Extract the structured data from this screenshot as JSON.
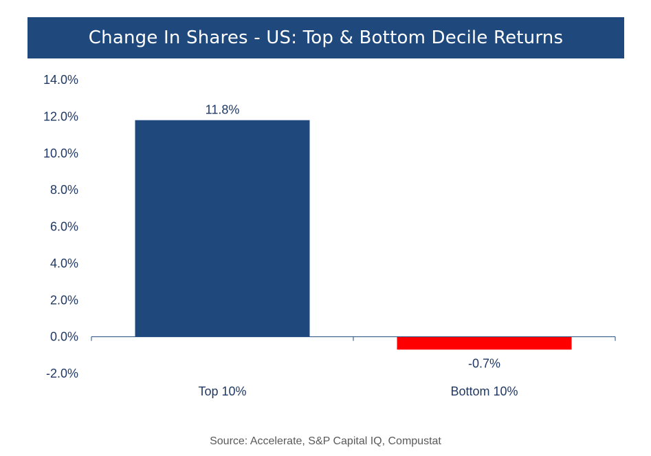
{
  "chart_data": {
    "type": "bar",
    "title": "Change In Shares - US: Top & Bottom Decile Returns",
    "categories": [
      "Top 10%",
      "Bottom 10%"
    ],
    "values": [
      11.8,
      -0.7
    ],
    "data_labels": [
      "11.8%",
      "-0.7%"
    ],
    "bar_colors": [
      "#1f497d",
      "#ff0000"
    ],
    "ylim": [
      -2.0,
      14.0
    ],
    "yticks": [
      -2.0,
      0.0,
      2.0,
      4.0,
      6.0,
      8.0,
      10.0,
      12.0,
      14.0
    ],
    "ytick_labels": [
      "-2.0%",
      "0.0%",
      "2.0%",
      "4.0%",
      "6.0%",
      "8.0%",
      "10.0%",
      "12.0%",
      "14.0%"
    ],
    "xlabel": "",
    "ylabel": "",
    "grid": false,
    "legend": "none"
  },
  "source": "Source: Accelerate, S&P Capital IQ, Compustat",
  "colors": {
    "title_bg": "#1f497d",
    "title_text": "#ffffff",
    "axis_text": "#1f3864",
    "axis_line": "#1f497d",
    "source_text": "#595959"
  }
}
